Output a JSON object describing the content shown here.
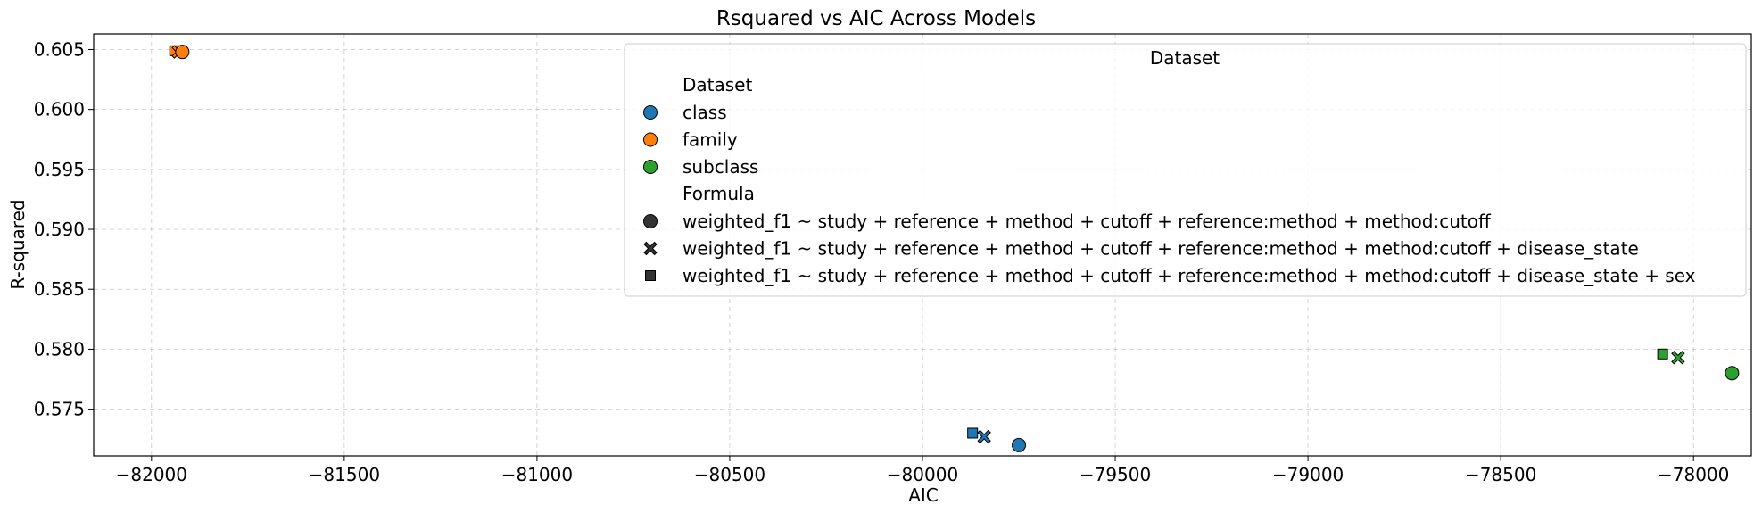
{
  "chart_data": {
    "type": "scatter",
    "title": "Rsquared vs AIC Across Models",
    "xlabel": "AIC",
    "ylabel": "R-squared",
    "xlim": [
      -82150,
      -77850
    ],
    "ylim": [
      0.5711,
      0.6063
    ],
    "xticks": [
      -82000,
      -81500,
      -81000,
      -80500,
      -80000,
      -79500,
      -79000,
      -78500,
      -78000
    ],
    "xtick_labels": [
      "−82000",
      "−81500",
      "−81000",
      "−80500",
      "−80000",
      "−79500",
      "−79000",
      "−78500",
      "−78000"
    ],
    "yticks": [
      0.575,
      0.58,
      0.585,
      0.59,
      0.595,
      0.6,
      0.605
    ],
    "ytick_labels": [
      "0.575",
      "0.580",
      "0.585",
      "0.590",
      "0.595",
      "0.600",
      "0.605"
    ],
    "grid": true,
    "legend_position": "top-right",
    "legend": {
      "title": "Dataset",
      "hue_title": "Dataset",
      "style_title": "Formula",
      "datasets": [
        {
          "label": "class",
          "color": "#1f77b4"
        },
        {
          "label": "family",
          "color": "#ff7f0e"
        },
        {
          "label": "subclass",
          "color": "#2ca02c"
        }
      ],
      "formulas": [
        {
          "label": "weighted_f1 ~ study + reference + method + cutoff + reference:method + method:cutoff",
          "marker": "circle"
        },
        {
          "label": "weighted_f1 ~ study + reference + method + cutoff + reference:method + method:cutoff +  disease_state",
          "marker": "x"
        },
        {
          "label": "weighted_f1 ~ study + reference + method + cutoff + reference:method + method:cutoff + disease_state + sex",
          "marker": "square"
        }
      ]
    },
    "points": [
      {
        "dataset": "class",
        "formula": 0,
        "x": -79750,
        "y": 0.572
      },
      {
        "dataset": "class",
        "formula": 1,
        "x": -79840,
        "y": 0.5727
      },
      {
        "dataset": "class",
        "formula": 2,
        "x": -79870,
        "y": 0.573
      },
      {
        "dataset": "family",
        "formula": 0,
        "x": -81920,
        "y": 0.6048
      },
      {
        "dataset": "family",
        "formula": 1,
        "x": -81930,
        "y": 0.6048
      },
      {
        "dataset": "family",
        "formula": 2,
        "x": -81940,
        "y": 0.6049
      },
      {
        "dataset": "subclass",
        "formula": 0,
        "x": -77900,
        "y": 0.578
      },
      {
        "dataset": "subclass",
        "formula": 1,
        "x": -78040,
        "y": 0.5793
      },
      {
        "dataset": "subclass",
        "formula": 2,
        "x": -78080,
        "y": 0.5796
      }
    ],
    "colors": {
      "class": "#1f77b4",
      "family": "#ff7f0e",
      "subclass": "#2ca02c"
    }
  }
}
